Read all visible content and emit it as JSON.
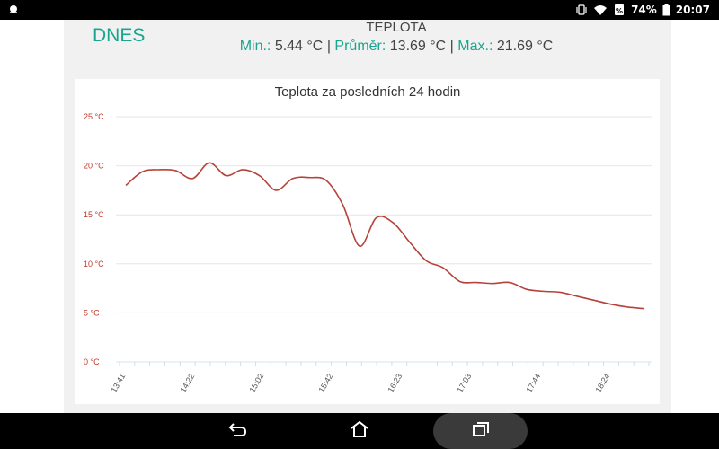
{
  "status_bar": {
    "notification_icon": "weather-notification-icon",
    "icons": [
      "vibrate-icon",
      "wifi-icon",
      "battery-saver-icon"
    ],
    "battery": "74%",
    "time": "20:07"
  },
  "summary": {
    "today_label": "DNES",
    "section_title": "TEPLOTA",
    "min_label": "Min.:",
    "min_value": "5.44 °C",
    "avg_label": "Průměr:",
    "avg_value": "13.69 °C",
    "max_label": "Max.:",
    "max_value": "21.69 °C",
    "separator": "|",
    "accent_color": "#1aa58f"
  },
  "nav_bar": {
    "back_icon": "back-icon",
    "home_icon": "home-icon",
    "recents_icon": "recents-icon"
  },
  "chart_data": {
    "type": "line",
    "title": "Teplota za posledních 24 hodin",
    "xlabel": "",
    "ylabel": "",
    "ylim": [
      0,
      25
    ],
    "y_ticks": [
      "0 °C",
      "5 °C",
      "10 °C",
      "15 °C",
      "20 °C",
      "25 °C"
    ],
    "y_tick_values": [
      0,
      5,
      10,
      15,
      20,
      25
    ],
    "x_tick_labels": [
      "13:41",
      "14:22",
      "15:02",
      "15:42",
      "16:23",
      "17:03",
      "17:44",
      "18:24"
    ],
    "line_color": "#b5433a",
    "axis_label_color": "#c0392b",
    "grid": true,
    "x": [
      0,
      1,
      2,
      3,
      4,
      5,
      6,
      7,
      8,
      9,
      10,
      11,
      12,
      13,
      14,
      15,
      16,
      17,
      18,
      19,
      20,
      21,
      22,
      23,
      24,
      25,
      26,
      27,
      28,
      29,
      30,
      31
    ],
    "values": [
      18.0,
      19.4,
      19.6,
      19.5,
      18.7,
      20.3,
      19.0,
      19.6,
      19.0,
      17.5,
      18.7,
      18.8,
      18.5,
      16.0,
      11.8,
      14.7,
      14.2,
      12.2,
      10.3,
      9.6,
      8.2,
      8.1,
      8.0,
      8.1,
      7.4,
      7.2,
      7.1,
      6.7,
      6.3,
      5.9,
      5.6,
      5.44
    ]
  }
}
